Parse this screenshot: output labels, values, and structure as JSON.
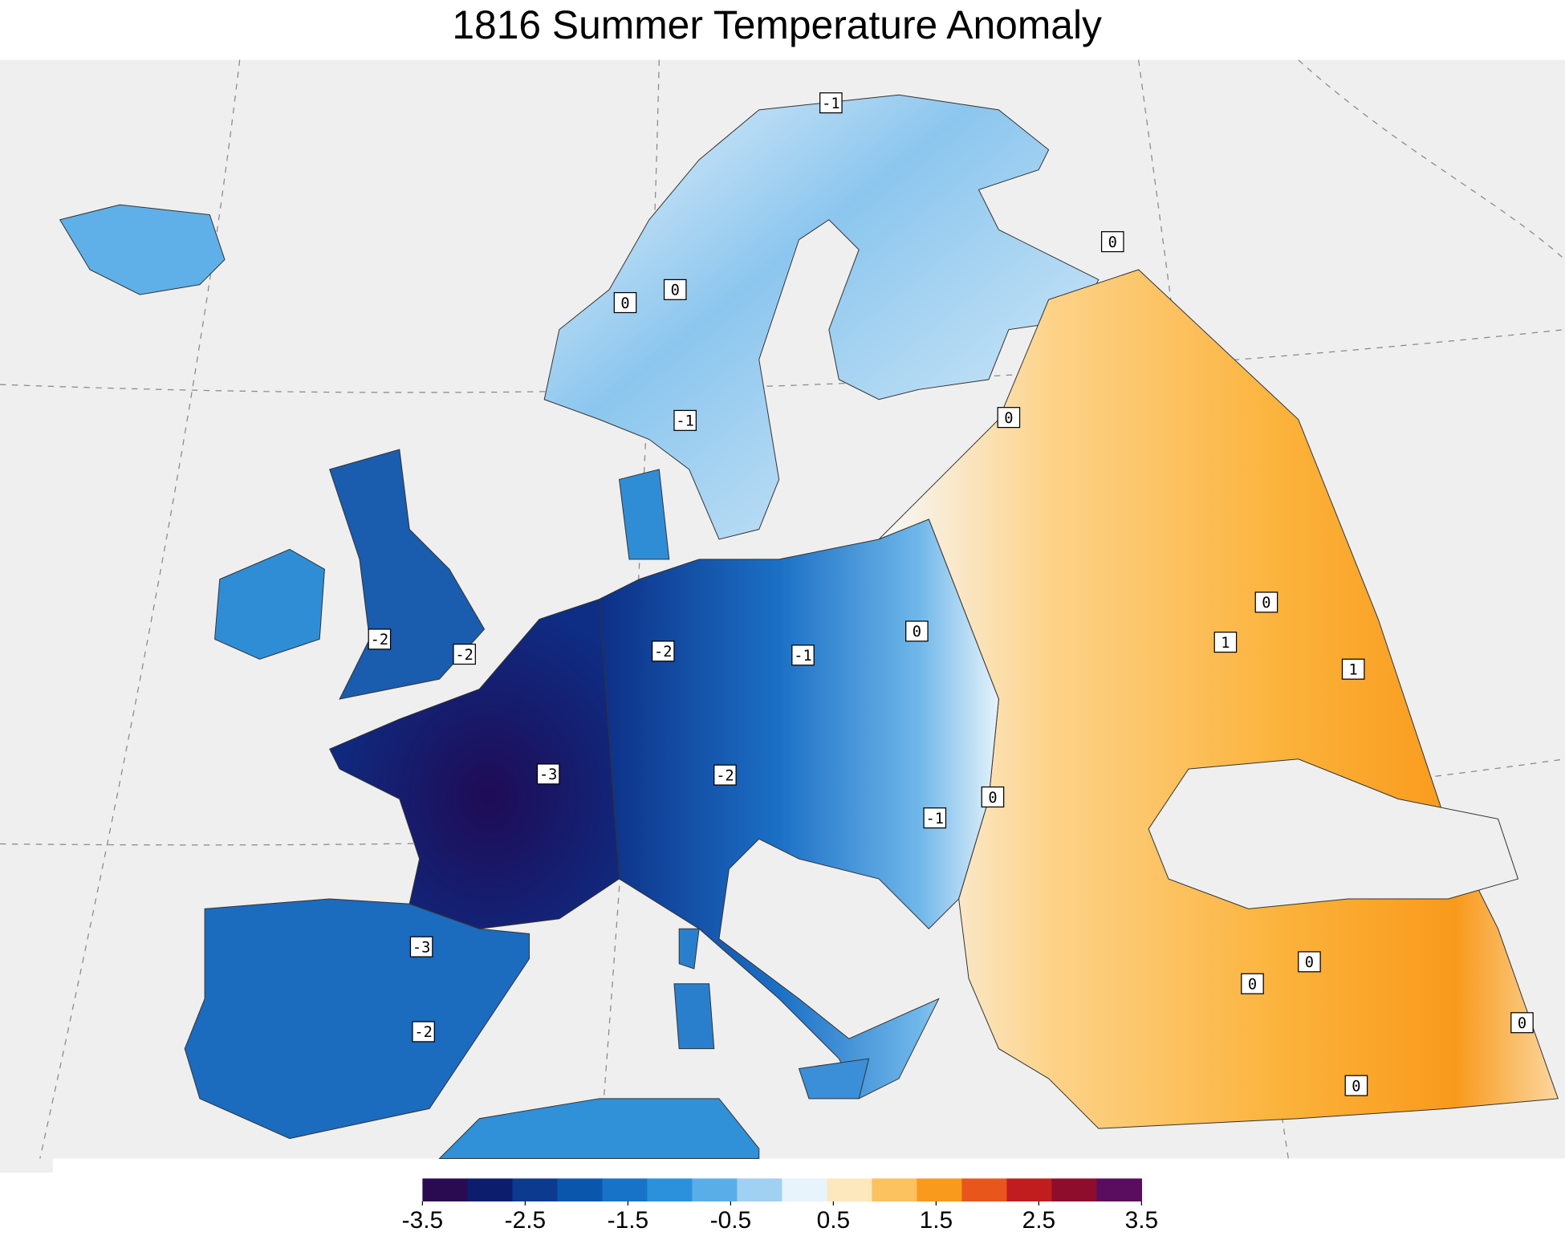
{
  "title": "1816 Summer Temperature Anomaly",
  "contour_labels": [
    -1,
    0,
    0,
    0,
    -1,
    0,
    -2,
    -2,
    -2,
    -1,
    0,
    0,
    1,
    1,
    -3,
    -2,
    0,
    -1,
    -3,
    0,
    0,
    -2,
    0,
    0
  ],
  "colorbar": {
    "lim": [
      -3.5,
      3.5
    ],
    "ticks": [
      -3.5,
      -2.5,
      -1.5,
      -0.5,
      0.5,
      1.5,
      2.5,
      3.5
    ],
    "colors": [
      "#2a0a50",
      "#0d1d6e",
      "#0c3a8e",
      "#0b56ad",
      "#1673c8",
      "#2b91dc",
      "#5aaee8",
      "#a0d0f2",
      "#e8f4fb",
      "#fde7bd",
      "#fbc25f",
      "#f99a1c",
      "#e8561c",
      "#c21d1e",
      "#8e0c2c",
      "#5a0c5e"
    ]
  }
}
